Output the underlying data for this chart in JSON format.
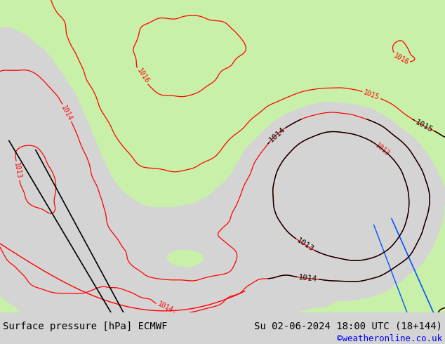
{
  "title_left": "Surface pressure [hPa] ECMWF",
  "title_right": "Su 02-06-2024 18:00 UTC (18+144)",
  "credit": "©weatheronline.co.uk",
  "land_green": "#c8f0a8",
  "sea_gray": "#d8d8d8",
  "contour_color_red": "#ff0000",
  "contour_color_black": "#000000",
  "contour_color_blue": "#0055ff",
  "footer_bg": "#d4d4d4",
  "label_fontsize": 7,
  "title_fontsize": 10,
  "credit_fontsize": 9
}
